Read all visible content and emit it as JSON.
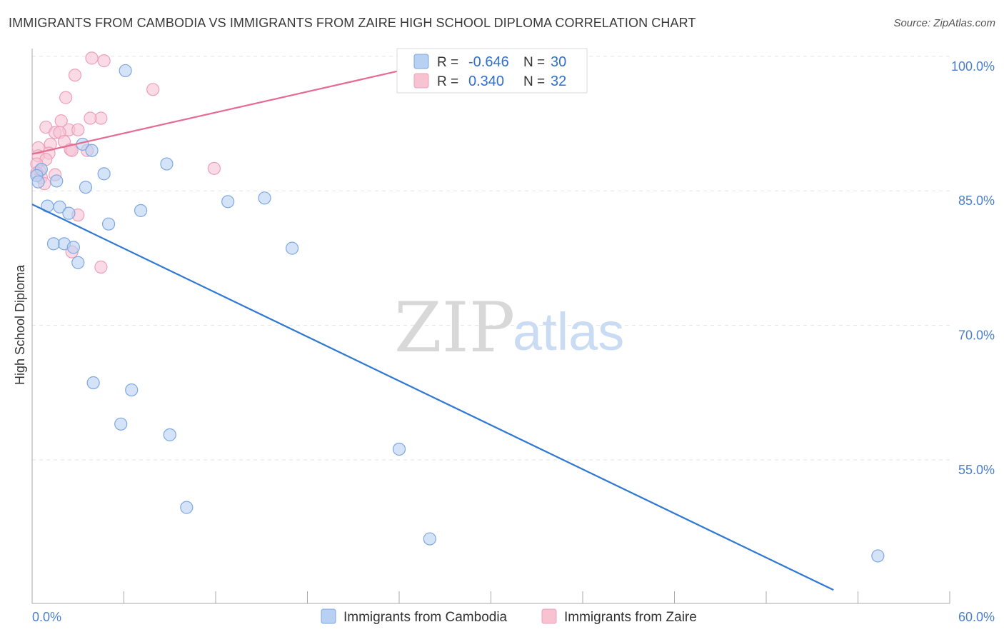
{
  "header": {
    "title": "IMMIGRANTS FROM CAMBODIA VS IMMIGRANTS FROM ZAIRE HIGH SCHOOL DIPLOMA CORRELATION CHART",
    "source": "Source: ZipAtlas.com"
  },
  "watermark": {
    "zip": "ZIP",
    "atlas": "atlas"
  },
  "colors": {
    "blue_fill": "#b8d0f2",
    "blue_stroke": "#7da8e3",
    "blue_line": "#2f78d4",
    "pink_fill": "#f7c3d3",
    "pink_stroke": "#eda0b8",
    "pink_line": "#e56b93",
    "tick_text": "#4a7fd0",
    "grid": "#e3e3e3"
  },
  "chart_data": {
    "type": "scatter",
    "title": "IMMIGRANTS FROM CAMBODIA VS IMMIGRANTS FROM ZAIRE HIGH SCHOOL DIPLOMA CORRELATION CHART",
    "xlabel": "",
    "ylabel": "High School Diploma",
    "xlim": [
      0,
      60
    ],
    "ylim": [
      39,
      101.5
    ],
    "x_tick_labels": [
      "0.0%",
      "60.0%"
    ],
    "x_tick_positions": [
      0,
      6,
      12,
      18,
      24,
      30,
      36,
      42,
      48,
      54,
      60
    ],
    "y_ticks": [
      {
        "value": 100,
        "label": "100.0%"
      },
      {
        "value": 85,
        "label": "85.0%"
      },
      {
        "value": 70,
        "label": "70.0%"
      },
      {
        "value": 55,
        "label": "55.0%"
      }
    ],
    "grid": true,
    "legend_position": "top-center",
    "stats": [
      {
        "r_label": "R =",
        "r_value": "-0.646",
        "n_label": "N =",
        "n_value": "30"
      },
      {
        "r_label": "R =",
        "r_value": "0.340",
        "n_label": "N =",
        "n_value": "32"
      }
    ],
    "series": [
      {
        "name": "Immigrants from Cambodia",
        "color": "#b8d0f2",
        "points": [
          [
            6.1,
            98.4
          ],
          [
            3.3,
            90.2
          ],
          [
            3.9,
            89.5
          ],
          [
            8.8,
            88.0
          ],
          [
            0.6,
            87.4
          ],
          [
            4.7,
            86.9
          ],
          [
            0.3,
            86.7
          ],
          [
            1.6,
            86.1
          ],
          [
            0.4,
            86.0
          ],
          [
            3.5,
            85.4
          ],
          [
            15.2,
            84.2
          ],
          [
            12.8,
            83.8
          ],
          [
            1.0,
            83.3
          ],
          [
            1.8,
            83.2
          ],
          [
            7.1,
            82.8
          ],
          [
            2.4,
            82.5
          ],
          [
            5.0,
            81.3
          ],
          [
            17.0,
            78.6
          ],
          [
            1.4,
            79.1
          ],
          [
            2.1,
            79.1
          ],
          [
            2.7,
            78.7
          ],
          [
            3.0,
            77.0
          ],
          [
            4.0,
            63.6
          ],
          [
            6.5,
            62.8
          ],
          [
            5.8,
            59.0
          ],
          [
            9.0,
            57.8
          ],
          [
            24.0,
            56.2
          ],
          [
            10.1,
            49.7
          ],
          [
            26.0,
            46.2
          ],
          [
            55.3,
            44.3
          ]
        ]
      },
      {
        "name": "Immigrants from Zaire",
        "color": "#f7c3d3",
        "points": [
          [
            3.9,
            99.8
          ],
          [
            4.7,
            99.5
          ],
          [
            2.8,
            97.9
          ],
          [
            7.9,
            96.3
          ],
          [
            2.2,
            95.4
          ],
          [
            4.5,
            93.1
          ],
          [
            1.9,
            92.8
          ],
          [
            0.9,
            92.1
          ],
          [
            2.4,
            91.8
          ],
          [
            3.0,
            91.8
          ],
          [
            1.5,
            91.5
          ],
          [
            1.8,
            91.5
          ],
          [
            2.1,
            90.5
          ],
          [
            1.2,
            90.2
          ],
          [
            0.4,
            89.8
          ],
          [
            2.5,
            89.6
          ],
          [
            3.6,
            89.5
          ],
          [
            2.6,
            89.5
          ],
          [
            1.1,
            89.2
          ],
          [
            0.4,
            88.9
          ],
          [
            0.9,
            88.5
          ],
          [
            0.3,
            88.0
          ],
          [
            11.9,
            87.5
          ],
          [
            0.5,
            87.2
          ],
          [
            0.3,
            87.0
          ],
          [
            1.5,
            86.8
          ],
          [
            0.6,
            86.5
          ],
          [
            0.8,
            85.8
          ],
          [
            3.0,
            82.3
          ],
          [
            2.6,
            78.2
          ],
          [
            4.5,
            76.5
          ],
          [
            3.8,
            93.1
          ]
        ]
      }
    ],
    "trend_lines": [
      {
        "series": "Immigrants from Cambodia",
        "x": [
          0,
          52.4
        ],
        "y": [
          83.5,
          40.5
        ]
      },
      {
        "series": "Immigrants from Zaire",
        "x": [
          0,
          28.2
        ],
        "y": [
          89.1,
          100.0
        ]
      }
    ]
  }
}
